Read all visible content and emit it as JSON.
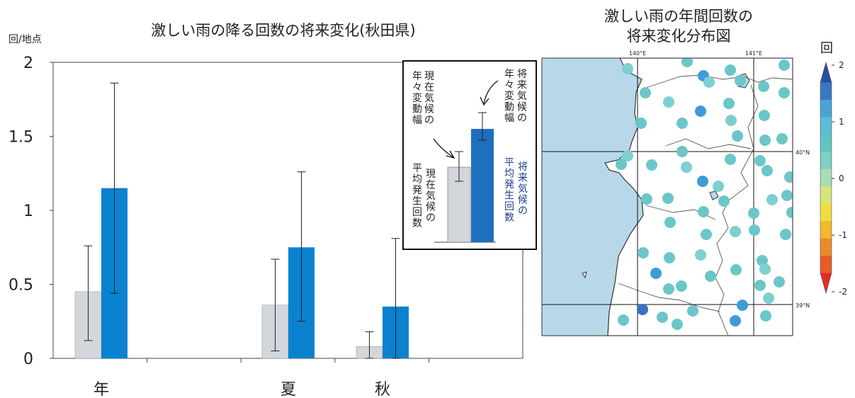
{
  "chart_data": [
    {
      "type": "bar",
      "title": "激しい雨の降る回数の将来変化(秋田県)",
      "ylabel": "回/地点",
      "ylim": [
        0,
        2
      ],
      "yticks": [
        "0",
        "0.5",
        "1",
        "1.5",
        "2"
      ],
      "categories": [
        "年",
        "夏",
        "秋"
      ],
      "series": [
        {
          "color": "#d3d6da",
          "values": [
            0.45,
            0.36,
            0.08
          ],
          "err_low": [
            0.12,
            0.05,
            0.0
          ],
          "err_high": [
            0.76,
            0.67,
            0.18
          ]
        },
        {
          "color": "#0a82cf",
          "values": [
            1.15,
            0.75,
            0.35
          ],
          "err_low": [
            0.44,
            0.25,
            0.0
          ],
          "err_high": [
            1.86,
            1.26,
            0.81
          ]
        }
      ],
      "grid": false
    },
    {
      "type": "scatter",
      "title_lines": [
        "激しい雨の年間回数の",
        "将来変化分布図"
      ],
      "lon_labels": [
        "140°E",
        "141°E"
      ],
      "lat_labels": [
        "40°N",
        "39°N"
      ],
      "colorbar": {
        "title": "回",
        "ticks": [
          "2",
          "1",
          "0",
          "-1",
          "-2"
        ],
        "colors": [
          "#2a4f9e",
          "#3b78c4",
          "#4aa3d6",
          "#5cbdd8",
          "#62c3c4",
          "#7fd0c0",
          "#a9dbb7",
          "#d6e57a",
          "#f0dd40",
          "#f2b82e",
          "#ec8a2a",
          "#e85c28",
          "#de2d26"
        ]
      }
    }
  ],
  "legend": {
    "current_variation": "現在気候の年々変動幅",
    "future_variation": "将来気候の年々変動幅",
    "current_mean": "現在気候の平均発生回数",
    "future_mean": "将来気候の平均発生回数",
    "future_mean_color": "#1c3d94"
  }
}
